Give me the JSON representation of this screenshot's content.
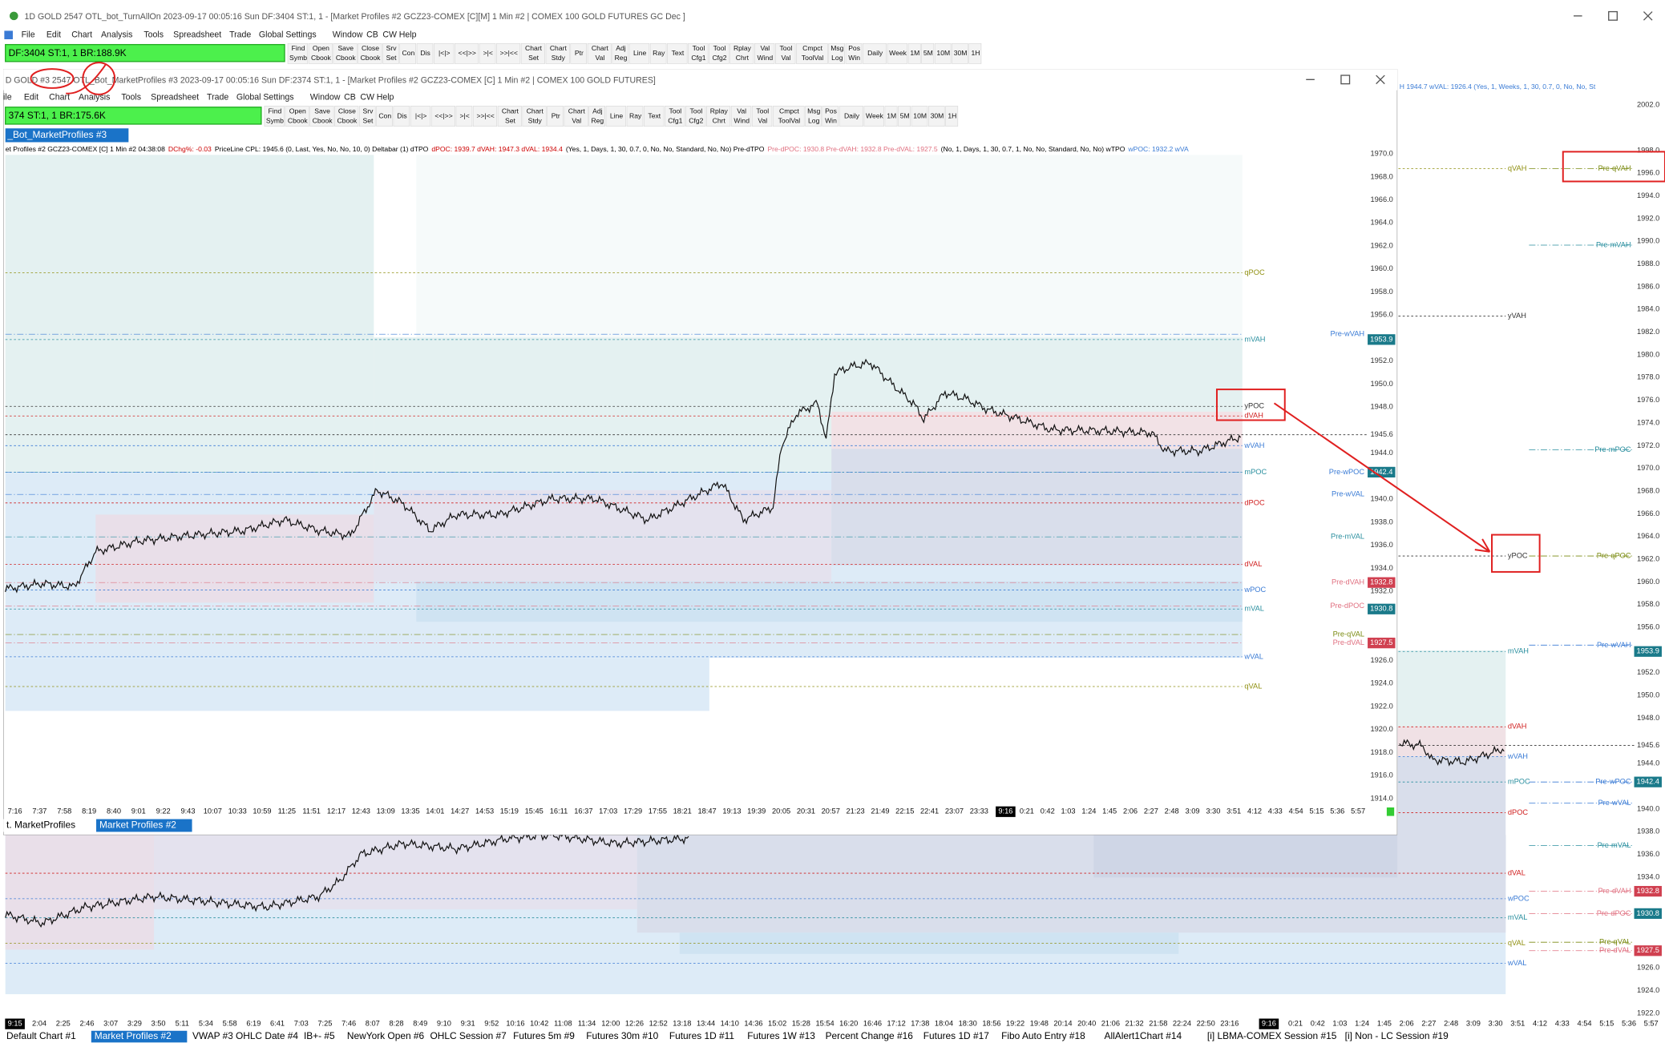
{
  "back_window": {
    "title": "1D GOLD 2547 OTL_bot_TurnAllOn 2023-09-17 00:05:16 Sun DF:3404 ST:1, 1 - [Market Profiles #2 GCZ23-COMEX [C][M] 1 Min #2 | COMEX 100 GOLD FUTURES GC Dec ]",
    "menu": [
      "File",
      "Edit",
      "Chart",
      "Analysis",
      "Tools",
      "Spreadsheet",
      "Trade",
      "Global Settings",
      "Window",
      "CB",
      "CW",
      "Help"
    ],
    "status": "DF:3404  ST:1, 1   BR:188.9K",
    "toolbar": [
      [
        "Find",
        "Symb"
      ],
      [
        "Open",
        "Cbook"
      ],
      [
        "Save",
        "Cbook"
      ],
      [
        "Close",
        "Cbook"
      ],
      [
        "Srv",
        "Set"
      ],
      [
        "Con"
      ],
      [
        "Dis"
      ],
      [
        "|<|>"
      ],
      [
        "<<|>>"
      ],
      [
        ">|<"
      ],
      [
        ">>|<<"
      ],
      [
        "Chart",
        "Set"
      ],
      [
        "Chart",
        "Stdy"
      ],
      [
        "Ptr"
      ],
      [
        "Chart",
        "Val"
      ],
      [
        "Adj",
        "Reg"
      ],
      [
        "Line"
      ],
      [
        "Ray"
      ],
      [
        "Text"
      ],
      [
        "Tool",
        "Cfg1"
      ],
      [
        "Tool",
        "Cfg2"
      ],
      [
        "Rplay",
        "Chrt"
      ],
      [
        "Val",
        "Wind"
      ],
      [
        "Tool",
        "Val"
      ],
      [
        "Cmpct",
        "ToolVal"
      ],
      [
        "Msg",
        "Log"
      ],
      [
        "Pos",
        "Win"
      ],
      [
        "Daily"
      ],
      [
        "Week"
      ],
      [
        "1M"
      ],
      [
        "5M"
      ],
      [
        "10M"
      ],
      [
        "30M"
      ],
      [
        "1H"
      ]
    ],
    "info": "H 1944.7  wVAL: 1926.4  (Yes, 1, Weeks, 1, 30, 0.7, 0, No, No, St",
    "price_axis": [
      "2002.0",
      "1998.0",
      "1996.0",
      "1994.0",
      "1992.0",
      "1990.0",
      "1988.0",
      "1986.0",
      "1984.0",
      "1982.0",
      "1980.0",
      "1978.0",
      "1976.0",
      "1974.0",
      "1972.0",
      "1970.0",
      "1968.0",
      "1966.0",
      "1964.0",
      "1962.0",
      "1960.0",
      "1958.0",
      "1956.0",
      "1952.0",
      "1950.0",
      "1948.0",
      "1945.6",
      "1944.0",
      "1940.0",
      "1938.0",
      "1936.0",
      "1934.0",
      "1926.0",
      "1924.0",
      "1922.0"
    ],
    "levels": [
      "qVAH",
      "yVAH",
      "yPOC",
      "mVAH",
      "dVAH",
      "wVAH",
      "mPOC",
      "dPOC",
      "dVAL",
      "wPOC",
      "mVAL",
      "qVAL",
      "wVAL"
    ],
    "pre_levels": [
      "Pre-qVAH",
      "Pre-mVAH",
      "Pre-mPOC",
      "Pre-qPOC",
      "Pre-wVAH",
      "Pre-wPOC",
      "Pre-wVAL",
      "Pre-mVAL",
      "Pre-dVAH",
      "Pre-dPOC",
      "Pre-qVAL",
      "Pre-dVAL"
    ],
    "tags": [
      "1953.9",
      "1942.4",
      "1932.8",
      "1930.8",
      "1927.5"
    ],
    "time_start": "9:15",
    "times": [
      "2:04",
      "2:25",
      "2:46",
      "3:07",
      "3:29",
      "3:50",
      "5:11",
      "5:34",
      "5:58",
      "6:19",
      "6:41",
      "7:03",
      "7:25",
      "7:46",
      "8:07",
      "8:28",
      "8:49",
      "9:10",
      "9:31",
      "9:52",
      "10:16",
      "10:42",
      "11:08",
      "11:34",
      "12:00",
      "12:26",
      "12:52",
      "13:18",
      "13:44",
      "14:10",
      "14:36",
      "15:02",
      "15:28",
      "15:54",
      "16:20",
      "16:46",
      "17:12",
      "17:38",
      "18:04",
      "18:30",
      "18:56",
      "19:22",
      "19:48",
      "20:14",
      "20:40",
      "21:06",
      "21:32",
      "21:58",
      "22:24",
      "22:50",
      "23:16"
    ],
    "session_marker": "9:16",
    "times_after": [
      "0:21",
      "0:42",
      "1:03",
      "1:24",
      "1:45",
      "2:06",
      "2:27",
      "2:48",
      "3:09",
      "3:30",
      "3:51",
      "4:12",
      "4:33",
      "4:54",
      "5:15",
      "5:36",
      "5:57"
    ],
    "tabs_before": [
      "Default Chart #1"
    ],
    "active_tab": "Market Profiles #2",
    "tabs_after": [
      "VWAP #3",
      "OHLC Date #4",
      "IB+- #5",
      "NewYork Open #6",
      "OHLC Session #7",
      "Futures 5m #9",
      "Futures 30m #10",
      "Futures 1D #11",
      "Futures 1W #13",
      "Percent Change #16",
      "Futures 1D #17",
      "Fibo Auto Entry #18",
      "AllAlert1Chart  #14",
      "[i] LBMA-COMEX Session #15",
      "[i] Non - LC Session #19"
    ]
  },
  "front_window": {
    "title": "D GOLD #3 2547 OTL_Bot_MarketProfiles #3 2023-09-17  00:05:16 Sun  DF:2374  ST:1, 1 - [Market Profiles #2 GCZ23-COMEX [C]  1 Min  #2 | COMEX 100 GOLD FUTURES]",
    "menu": [
      "ile",
      "Edit",
      "Chart",
      "Analysis",
      "Tools",
      "Spreadsheet",
      "Trade",
      "Global Settings",
      "Window",
      "CB",
      "CW",
      "Help"
    ],
    "status": "374  ST:1, 1   BR:175.6K",
    "toolbar": [
      [
        "Find",
        "Symb"
      ],
      [
        "Open",
        "Cbook"
      ],
      [
        "Save",
        "Cbook"
      ],
      [
        "Close",
        "Cbook"
      ],
      [
        "Srv",
        "Set"
      ],
      [
        "Con"
      ],
      [
        "Dis"
      ],
      [
        "|<|>"
      ],
      [
        "<<|>>"
      ],
      [
        ">|<"
      ],
      [
        ">>|<<"
      ],
      [
        "Chart",
        "Set"
      ],
      [
        "Chart",
        "Stdy"
      ],
      [
        "Ptr"
      ],
      [
        "Chart",
        "Val"
      ],
      [
        "Adj",
        "Reg"
      ],
      [
        "Line"
      ],
      [
        "Ray"
      ],
      [
        "Text"
      ],
      [
        "Tool",
        "Cfg1"
      ],
      [
        "Tool",
        "Cfg2"
      ],
      [
        "Rplay",
        "Chrt"
      ],
      [
        "Val",
        "Wind"
      ],
      [
        "Tool",
        "Val"
      ],
      [
        "Cmpct",
        "ToolVal"
      ],
      [
        "Msg",
        "Log"
      ],
      [
        "Pos",
        "Win"
      ],
      [
        "Daily"
      ],
      [
        "Week"
      ],
      [
        "1M"
      ],
      [
        "5M"
      ],
      [
        "10M"
      ],
      [
        "30M"
      ],
      [
        "1H"
      ]
    ],
    "tab_label": "_Bot_MarketProfiles #3",
    "info": [
      {
        "text": "et Profiles #2 GCZ23-COMEX [C] 1 Min #2 04:38:08",
        "color": "#000000"
      },
      {
        "text": "DChg%: -0.03",
        "color": "#cc0000"
      },
      {
        "text": "PriceLine  CPL: 1945.6  (0, Last, Yes, No, No, 10, 0)  Deltabar  (1)  dTPO",
        "color": "#000000"
      },
      {
        "text": "dPOC: 1939.7  dVAH: 1947.3  dVAL: 1934.4",
        "color": "#cc0000"
      },
      {
        "text": "(Yes, 1, Days, 1, 30, 0.7, 0, No, No, Standard, No, No)  Pre-dTPO",
        "color": "#000000"
      },
      {
        "text": "Pre-dPOC: 1930.8  Pre-dVAH: 1932.8  Pre-dVAL: 1927.5",
        "color": "#e07080"
      },
      {
        "text": "(No, 1, Days, 1, 30, 0.7, 1, No, No, Standard, No, No)  wTPO",
        "color": "#000000"
      },
      {
        "text": "wPOC: 1932.2  wVA",
        "color": "#3a7bd5"
      }
    ],
    "price_axis": [
      "1970.0",
      "1968.0",
      "1966.0",
      "1964.0",
      "1962.0",
      "1960.0",
      "1958.0",
      "1956.0",
      "1952.0",
      "1950.0",
      "1948.0",
      "1945.6",
      "1944.0",
      "1940.0",
      "1938.0",
      "1936.0",
      "1934.0",
      "1932.0",
      "1926.0",
      "1924.0",
      "1922.0",
      "1920.0",
      "1918.0",
      "1916.0",
      "1914.0"
    ],
    "levels": [
      "qPOC",
      "mVAH",
      "yPOC",
      "dVAH",
      "wVAH",
      "mPOC",
      "dPOC",
      "dVAL",
      "wPOC",
      "mVAL",
      "wVAL",
      "qVAL"
    ],
    "pre_levels": [
      "Pre-wVAH",
      "Pre-wPOC",
      "Pre-wVAL",
      "Pre-mVAL",
      "Pre-dVAH",
      "Pre-dPOC",
      "Pre-qVAL",
      "Pre-dVAL"
    ],
    "tags": [
      "1953.9",
      "1942.4",
      "1932.8",
      "1930.8",
      "1927.5"
    ],
    "times": [
      "7:16",
      "7:37",
      "7:58",
      "8:19",
      "8:40",
      "9:01",
      "9:22",
      "9:43",
      "10:07",
      "10:33",
      "10:59",
      "11:25",
      "11:51",
      "12:17",
      "12:43",
      "13:09",
      "13:35",
      "14:01",
      "14:27",
      "14:53",
      "15:19",
      "15:45",
      "16:11",
      "16:37",
      "17:03",
      "17:29",
      "17:55",
      "18:21",
      "18:47",
      "19:13",
      "19:39",
      "20:05",
      "20:31",
      "20:57",
      "21:23",
      "21:49",
      "22:15",
      "22:41",
      "23:07",
      "23:33"
    ],
    "session_marker": "9:16",
    "times_after": [
      "0:21",
      "0:42",
      "1:03",
      "1:24",
      "1:45",
      "2:06",
      "2:27",
      "2:48",
      "3:09",
      "3:30",
      "3:51",
      "4:12",
      "4:33",
      "4:54",
      "5:15",
      "5:36",
      "5:57"
    ],
    "tabs_before": [
      "t. MarketProfiles"
    ],
    "active_tab": "Market Profiles #2"
  }
}
